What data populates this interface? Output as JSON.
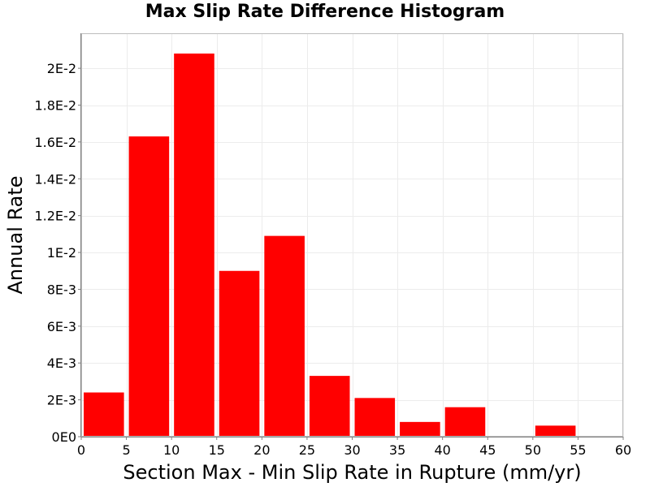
{
  "chart_data": {
    "type": "bar",
    "title": "Max Slip Rate Difference Histogram",
    "xlabel": "Section Max - Min Slip Rate in Rupture (mm/yr)",
    "ylabel": "Annual Rate",
    "xlim": [
      0,
      60
    ],
    "ylim": [
      0,
      0.0219
    ],
    "grid": true,
    "bar_color": "#ff0000",
    "bins": [
      {
        "x0": 0,
        "x1": 5,
        "value": 0.0024
      },
      {
        "x0": 5,
        "x1": 10,
        "value": 0.0163
      },
      {
        "x0": 10,
        "x1": 15,
        "value": 0.0208
      },
      {
        "x0": 15,
        "x1": 20,
        "value": 0.009
      },
      {
        "x0": 20,
        "x1": 25,
        "value": 0.0109
      },
      {
        "x0": 25,
        "x1": 30,
        "value": 0.0033
      },
      {
        "x0": 30,
        "x1": 35,
        "value": 0.0021
      },
      {
        "x0": 35,
        "x1": 40,
        "value": 0.0008
      },
      {
        "x0": 40,
        "x1": 45,
        "value": 0.0016
      },
      {
        "x0": 45,
        "x1": 50,
        "value": 0.0
      },
      {
        "x0": 50,
        "x1": 55,
        "value": 0.0006
      },
      {
        "x0": 55,
        "x1": 60,
        "value": 0.0
      }
    ],
    "x_ticks": [
      {
        "value": 0,
        "label": "0"
      },
      {
        "value": 5,
        "label": "5"
      },
      {
        "value": 10,
        "label": "10"
      },
      {
        "value": 15,
        "label": "15"
      },
      {
        "value": 20,
        "label": "20"
      },
      {
        "value": 25,
        "label": "25"
      },
      {
        "value": 30,
        "label": "30"
      },
      {
        "value": 35,
        "label": "35"
      },
      {
        "value": 40,
        "label": "40"
      },
      {
        "value": 45,
        "label": "45"
      },
      {
        "value": 50,
        "label": "50"
      },
      {
        "value": 55,
        "label": "55"
      },
      {
        "value": 60,
        "label": "60"
      }
    ],
    "y_ticks": [
      {
        "value": 0,
        "label": "0E0"
      },
      {
        "value": 0.002,
        "label": "2E-3"
      },
      {
        "value": 0.004,
        "label": "4E-3"
      },
      {
        "value": 0.006,
        "label": "6E-3"
      },
      {
        "value": 0.008,
        "label": "8E-3"
      },
      {
        "value": 0.01,
        "label": "1E-2"
      },
      {
        "value": 0.012,
        "label": "1.2E-2"
      },
      {
        "value": 0.014,
        "label": "1.4E-2"
      },
      {
        "value": 0.016,
        "label": "1.6E-2"
      },
      {
        "value": 0.018,
        "label": "1.8E-2"
      },
      {
        "value": 0.02,
        "label": "2E-2"
      }
    ]
  }
}
